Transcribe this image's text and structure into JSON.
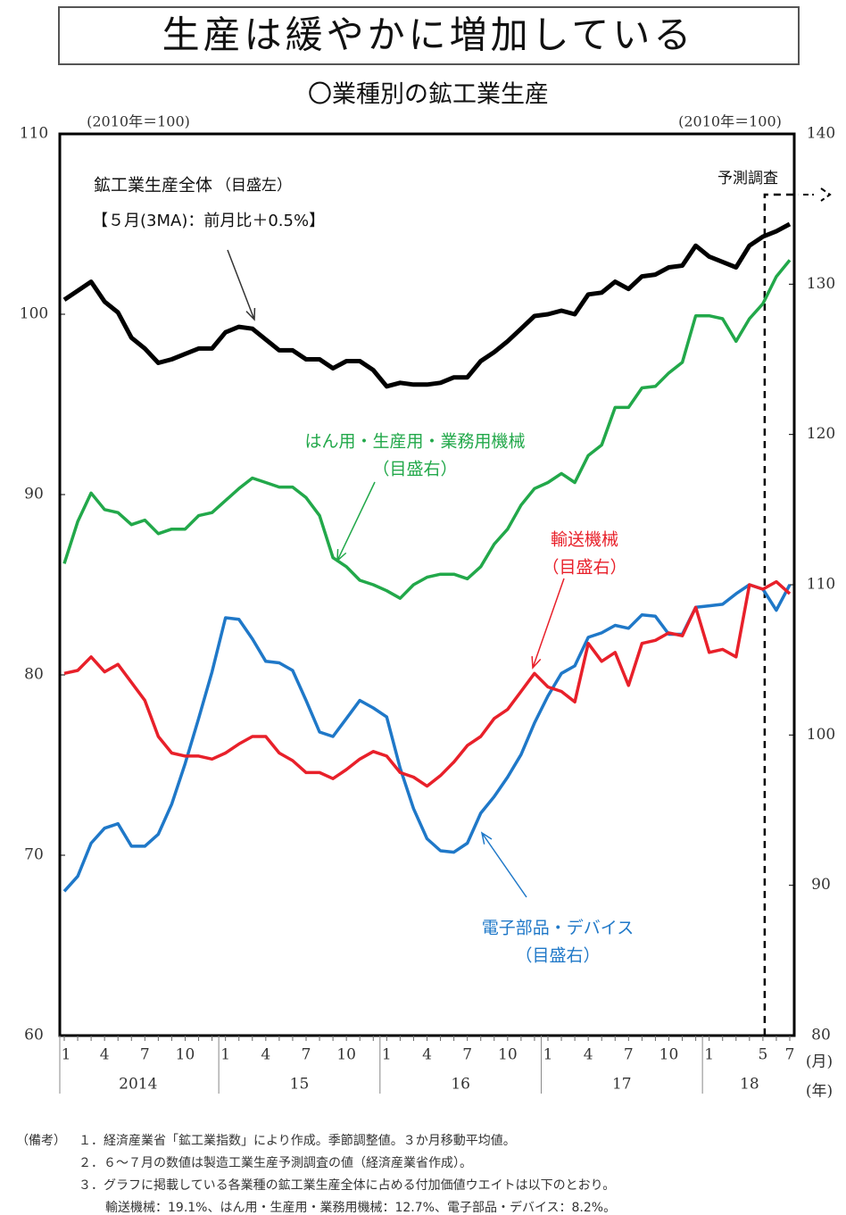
{
  "chart_data": {
    "type": "line",
    "title": "生産は緩やかに増加している",
    "subtitle": "〇業種別の鉱工業生産",
    "y_label": "(2010年＝100)",
    "y2_label": "(2010年＝100)",
    "x_unit": "(月)",
    "group_unit": "(年)",
    "forecast_label": "予測調査",
    "categories": [
      "1",
      null,
      null,
      "4",
      null,
      null,
      "7",
      null,
      null,
      "10",
      null,
      null,
      "1",
      null,
      null,
      "4",
      null,
      null,
      "7",
      null,
      null,
      "10",
      null,
      null,
      "1",
      null,
      null,
      "4",
      null,
      null,
      "7",
      null,
      null,
      "10",
      null,
      null,
      "1",
      null,
      null,
      "4",
      null,
      null,
      "7",
      null,
      null,
      "10",
      null,
      null,
      "1",
      null,
      null,
      null,
      "5",
      null,
      "7"
    ],
    "groups": [
      "2014",
      "15",
      "16",
      "17",
      "18"
    ],
    "ylim": [
      60,
      110
    ],
    "yticks": [
      60,
      70,
      80,
      90,
      100,
      110
    ],
    "y2lim": [
      80,
      140
    ],
    "y2ticks": [
      80,
      90,
      100,
      110,
      120,
      130,
      140
    ],
    "series": [
      {
        "name": "鉱工業生産全体",
        "axis_note": "（目盛左）",
        "detail": "【５月(3MA)：前月比＋0.5%】",
        "color": "#000000",
        "axis": "y",
        "values": [
          100.8,
          101.3,
          101.8,
          100.7,
          100.1,
          98.7,
          98.1,
          97.3,
          97.5,
          97.8,
          98.1,
          98.1,
          99.0,
          99.3,
          99.2,
          98.6,
          98.0,
          98.0,
          97.5,
          97.5,
          97.0,
          97.4,
          97.4,
          96.9,
          96.0,
          96.2,
          96.1,
          96.1,
          96.2,
          96.5,
          96.5,
          97.4,
          97.9,
          98.5,
          99.2,
          99.9,
          100.0,
          100.2,
          100.0,
          101.1,
          101.2,
          101.8,
          101.4,
          102.1,
          102.2,
          102.6,
          102.7,
          103.8,
          103.2,
          102.9,
          102.6,
          103.8,
          104.3,
          104.6,
          105.0
        ]
      },
      {
        "name": "はん用・生産用・業務用機械",
        "axis_note": "（目盛右）",
        "color": "#22a84a",
        "axis": "y2",
        "values": [
          111.4,
          114.2,
          116.1,
          115.0,
          114.8,
          114.0,
          114.3,
          113.4,
          113.7,
          113.7,
          114.6,
          114.8,
          115.6,
          116.4,
          117.1,
          116.8,
          116.5,
          116.5,
          115.8,
          114.6,
          111.8,
          111.2,
          110.3,
          110.0,
          109.6,
          109.1,
          110.0,
          110.5,
          110.7,
          110.7,
          110.4,
          111.2,
          112.7,
          113.7,
          115.3,
          116.4,
          116.8,
          117.4,
          116.8,
          118.6,
          119.3,
          121.8,
          121.8,
          123.1,
          123.2,
          124.1,
          124.8,
          127.9,
          127.9,
          127.7,
          126.2,
          127.7,
          128.7,
          130.5,
          131.6
        ]
      },
      {
        "name": "輸送機械",
        "axis_note": "（目盛右）",
        "color": "#e8202a",
        "axis": "y2",
        "values": [
          104.1,
          104.3,
          105.2,
          104.2,
          104.7,
          103.5,
          102.3,
          99.9,
          98.8,
          98.6,
          98.6,
          98.4,
          98.8,
          99.4,
          99.9,
          99.9,
          98.8,
          98.3,
          97.5,
          97.5,
          97.1,
          97.7,
          98.4,
          98.9,
          98.6,
          97.5,
          97.2,
          96.6,
          97.3,
          98.2,
          99.3,
          99.9,
          101.1,
          101.7,
          102.9,
          104.1,
          103.2,
          102.9,
          102.2,
          106.1,
          104.9,
          105.5,
          103.3,
          106.1,
          106.3,
          106.8,
          106.6,
          108.5,
          105.5,
          105.7,
          105.2,
          110.0,
          109.7,
          110.2,
          109.4
        ]
      },
      {
        "name": "電子部品・デバイス",
        "axis_note": "（目盛右）",
        "color": "#1f78c8",
        "axis": "y2",
        "values": [
          89.6,
          90.6,
          92.8,
          93.8,
          94.1,
          92.6,
          92.6,
          93.4,
          95.4,
          98.1,
          101.1,
          104.2,
          107.8,
          107.7,
          106.4,
          104.9,
          104.8,
          104.3,
          102.3,
          100.2,
          99.9,
          101.1,
          102.3,
          101.8,
          101.2,
          97.8,
          95.1,
          93.1,
          92.3,
          92.2,
          92.8,
          94.8,
          95.9,
          97.2,
          98.7,
          100.8,
          102.6,
          104.1,
          104.6,
          106.5,
          106.8,
          107.3,
          107.1,
          108.0,
          107.9,
          106.7,
          106.7,
          108.5,
          108.6,
          108.7,
          109.4,
          110.0,
          109.7,
          108.3,
          110.0
        ]
      }
    ]
  },
  "notes": {
    "label": "（備考）",
    "items": [
      "１．経済産業省「鉱工業指数」により作成。季節調整値。３か月移動平均値。",
      "２．６～７月の数値は製造工業生産予測調査の値（経済産業省作成）。",
      "３．グラフに掲載している各業種の鉱工業生産全体に占める付加価値ウエイトは以下のとおり。",
      "輸送機械：19.1%、はん用・生産用・業務用機械：12.7%、電子部品・デバイス：8.2%。"
    ]
  }
}
